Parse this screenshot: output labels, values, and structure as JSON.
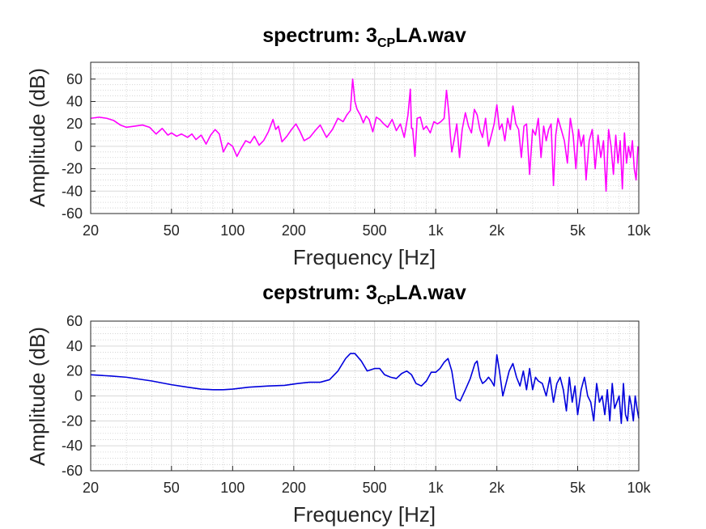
{
  "figure": {
    "background": "#ffffff"
  },
  "chart_data": [
    {
      "type": "line",
      "title_prefix": "spectrum: 3",
      "title_subscript": "CP",
      "title_suffix": "LA.wav",
      "xlabel": "Frequency [Hz]",
      "ylabel": "Amplitude (dB)",
      "xscale": "log",
      "xlim": [
        20,
        10000
      ],
      "ylim": [
        -60,
        75
      ],
      "xticks": [
        20,
        50,
        100,
        200,
        500,
        1000,
        2000,
        5000,
        10000
      ],
      "xtick_labels": [
        "20",
        "50",
        "100",
        "200",
        "500",
        "1k",
        "2k",
        "5k",
        "10k"
      ],
      "yticks": [
        -60,
        -40,
        -20,
        0,
        20,
        40,
        60
      ],
      "ytick_labels": [
        "-60",
        "-40",
        "-20",
        "0",
        "20",
        "40",
        "60"
      ],
      "grid": true,
      "minor_grid": true,
      "series": [
        {
          "color": "#ff00ff",
          "x": [
            20,
            22,
            24,
            26,
            28,
            30,
            33,
            36,
            39,
            42,
            45,
            48,
            50,
            53,
            56,
            60,
            63,
            66,
            70,
            74,
            78,
            82,
            86,
            90,
            95,
            100,
            105,
            110,
            116,
            122,
            128,
            135,
            142,
            150,
            158,
            163,
            168,
            175,
            185,
            195,
            205,
            215,
            225,
            240,
            255,
            270,
            290,
            310,
            330,
            350,
            365,
            380,
            390,
            400,
            410,
            425,
            440,
            455,
            470,
            490,
            510,
            530,
            555,
            580,
            610,
            640,
            670,
            700,
            730,
            750,
            760,
            770,
            790,
            810,
            840,
            870,
            900,
            940,
            980,
            1020,
            1060,
            1100,
            1130,
            1160,
            1180,
            1200,
            1230,
            1270,
            1310,
            1350,
            1400,
            1450,
            1500,
            1550,
            1600,
            1650,
            1700,
            1760,
            1820,
            1880,
            1940,
            2000,
            2060,
            2120,
            2190,
            2260,
            2330,
            2400,
            2480,
            2560,
            2640,
            2720,
            2800,
            2900,
            3000,
            3100,
            3200,
            3300,
            3400,
            3500,
            3600,
            3700,
            3800,
            3900,
            4000,
            4150,
            4300,
            4450,
            4600,
            4750,
            4900,
            5050,
            5200,
            5350,
            5500,
            5700,
            5900,
            6100,
            6300,
            6500,
            6700,
            6900,
            7100,
            7300,
            7500,
            7700,
            7900,
            8100,
            8300,
            8500,
            8700,
            8900,
            9100,
            9300,
            9500,
            9700,
            9900
          ],
          "y": [
            25,
            26,
            25,
            23,
            19,
            17,
            18,
            19,
            17,
            11,
            16,
            10,
            12,
            9,
            11,
            8,
            11,
            6,
            10,
            2,
            10,
            15,
            11,
            -5,
            3,
            0,
            -9,
            -2,
            5,
            3,
            9,
            1,
            5,
            13,
            24,
            15,
            18,
            4,
            9,
            15,
            20,
            13,
            5,
            8,
            14,
            19,
            8,
            15,
            25,
            22,
            28,
            32,
            60,
            40,
            33,
            28,
            21,
            27,
            24,
            13,
            26,
            24,
            20,
            17,
            24,
            14,
            20,
            8,
            28,
            51,
            16,
            16,
            -9,
            25,
            26,
            15,
            18,
            12,
            22,
            20,
            22,
            25,
            50,
            30,
            10,
            -5,
            5,
            20,
            -10,
            15,
            30,
            18,
            12,
            33,
            28,
            15,
            8,
            25,
            0,
            10,
            20,
            37,
            15,
            20,
            5,
            25,
            15,
            36,
            20,
            15,
            -10,
            18,
            20,
            -25,
            15,
            10,
            25,
            -10,
            18,
            5,
            15,
            20,
            -35,
            10,
            25,
            15,
            5,
            -15,
            25,
            10,
            -20,
            15,
            0,
            10,
            -30,
            5,
            15,
            -20,
            10,
            -10,
            5,
            -40,
            15,
            0,
            -25,
            10,
            -15,
            5,
            -38,
            12,
            -15,
            0,
            -10,
            5,
            -20,
            -30,
            0
          ]
        }
      ]
    },
    {
      "type": "line",
      "title_prefix": "cepstrum: 3",
      "title_subscript": "CP",
      "title_suffix": "LA.wav",
      "xlabel": "Frequency [Hz]",
      "ylabel": "Amplitude (dB)",
      "xscale": "log",
      "xlim": [
        20,
        10000
      ],
      "ylim": [
        -60,
        60
      ],
      "xticks": [
        20,
        50,
        100,
        200,
        500,
        1000,
        2000,
        5000,
        10000
      ],
      "xtick_labels": [
        "20",
        "50",
        "100",
        "200",
        "500",
        "1k",
        "2k",
        "5k",
        "10k"
      ],
      "yticks": [
        -60,
        -40,
        -20,
        0,
        20,
        40,
        60
      ],
      "ytick_labels": [
        "-60",
        "-40",
        "-20",
        "0",
        "20",
        "40",
        "60"
      ],
      "grid": true,
      "minor_grid": true,
      "series": [
        {
          "color": "#0000dd",
          "x": [
            20,
            25,
            30,
            40,
            50,
            60,
            70,
            80,
            90,
            100,
            120,
            150,
            180,
            210,
            240,
            270,
            300,
            330,
            360,
            380,
            400,
            430,
            460,
            500,
            530,
            560,
            600,
            640,
            680,
            720,
            760,
            800,
            850,
            900,
            950,
            1000,
            1050,
            1100,
            1150,
            1200,
            1260,
            1320,
            1400,
            1480,
            1560,
            1600,
            1650,
            1700,
            1760,
            1820,
            1880,
            1940,
            2000,
            2060,
            2140,
            2220,
            2300,
            2400,
            2500,
            2600,
            2700,
            2800,
            2900,
            3000,
            3100,
            3200,
            3350,
            3500,
            3650,
            3800,
            3950,
            4100,
            4250,
            4400,
            4550,
            4700,
            4850,
            5000,
            5200,
            5400,
            5600,
            5800,
            6000,
            6200,
            6400,
            6600,
            6800,
            7000,
            7200,
            7400,
            7600,
            7800,
            8000,
            8200,
            8400,
            8600,
            8800,
            9000,
            9200,
            9400,
            9600,
            9800,
            10000
          ],
          "y": [
            17,
            16,
            15,
            12,
            9,
            7,
            5.5,
            5,
            5,
            5.5,
            7,
            8,
            8.5,
            10,
            11,
            11,
            13,
            20,
            30,
            34,
            34,
            28,
            20,
            22,
            22,
            17,
            15,
            14,
            18,
            20,
            17,
            10,
            8,
            12,
            19,
            19,
            22,
            27,
            30,
            20,
            -2,
            -4,
            5,
            14,
            26,
            28,
            15,
            10,
            12,
            15,
            12,
            8,
            33,
            20,
            0,
            10,
            20,
            26,
            15,
            8,
            20,
            5,
            22,
            5,
            15,
            12,
            10,
            0,
            15,
            -5,
            10,
            15,
            5,
            -12,
            15,
            -5,
            8,
            -15,
            5,
            15,
            0,
            -5,
            -20,
            10,
            -5,
            0,
            -15,
            5,
            -20,
            10,
            -10,
            -5,
            0,
            -22,
            10,
            -15,
            -20,
            0,
            -8,
            -20,
            0,
            -10,
            -18
          ]
        }
      ]
    }
  ]
}
